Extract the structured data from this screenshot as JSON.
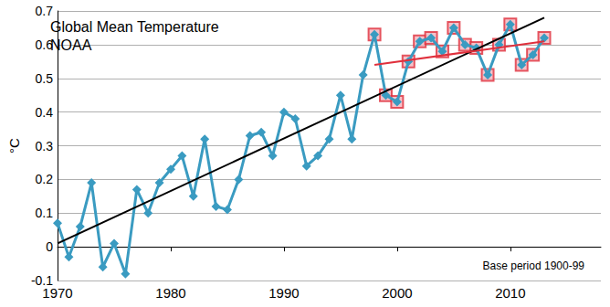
{
  "chart_data": {
    "type": "line",
    "title": "Global Mean Temperature",
    "subtitle": "NOAA",
    "y_label": "°C",
    "annotation": "Base period 1900-99",
    "grid": true,
    "xlim": [
      1970,
      2018
    ],
    "xticks": [
      1970,
      1980,
      1990,
      2000,
      2010
    ],
    "ylim": [
      -0.1,
      0.7
    ],
    "yticks": [
      -0.1,
      0,
      0.1,
      0.2,
      0.3,
      0.4,
      0.5,
      0.6,
      0.7
    ],
    "series": [
      {
        "type": "scatter",
        "color": "#e0303c",
        "marker": "square",
        "x": [
          1998,
          1999,
          2000,
          2001,
          2002,
          2003,
          2004,
          2005,
          2006,
          2007,
          2008,
          2009,
          2010,
          2011,
          2012,
          2013
        ],
        "values": [
          0.63,
          0.45,
          0.43,
          0.55,
          0.61,
          0.62,
          0.58,
          0.65,
          0.6,
          0.59,
          0.51,
          0.6,
          0.66,
          0.54,
          0.57,
          0.62
        ]
      },
      {
        "type": "line",
        "color": "#3a9bc1",
        "marker": "diamond",
        "line_style": "solid",
        "x": [
          1970,
          1971,
          1972,
          1973,
          1974,
          1975,
          1976,
          1977,
          1978,
          1979,
          1980,
          1981,
          1982,
          1983,
          1984,
          1985,
          1986,
          1987,
          1988,
          1989,
          1990,
          1991,
          1992,
          1993,
          1994,
          1995,
          1996,
          1997,
          1998,
          1999,
          2000,
          2001,
          2002,
          2003,
          2004,
          2005,
          2006,
          2007,
          2008,
          2009,
          2010,
          2011,
          2012,
          2013
        ],
        "values": [
          0.07,
          -0.03,
          0.06,
          0.19,
          -0.06,
          0.01,
          -0.08,
          0.17,
          0.1,
          0.19,
          0.23,
          0.27,
          0.15,
          0.32,
          0.12,
          0.11,
          0.2,
          0.33,
          0.34,
          0.27,
          0.4,
          0.38,
          0.24,
          0.27,
          0.32,
          0.45,
          0.32,
          0.51,
          0.63,
          0.45,
          0.43,
          0.55,
          0.61,
          0.62,
          0.58,
          0.65,
          0.6,
          0.59,
          0.51,
          0.6,
          0.66,
          0.54,
          0.57,
          0.62
        ]
      },
      {
        "type": "line",
        "color": "#000000",
        "marker": "none",
        "line_style": "solid",
        "x": [
          1970,
          2013
        ],
        "values": [
          0.01,
          0.68
        ]
      },
      {
        "type": "line",
        "color": "#e0303c",
        "marker": "none",
        "line_style": "solid",
        "x": [
          1998,
          2013
        ],
        "values": [
          0.54,
          0.61
        ]
      }
    ]
  }
}
